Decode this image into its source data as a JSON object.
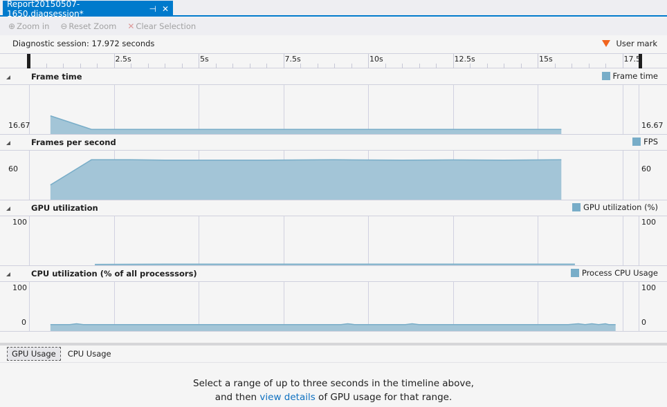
{
  "tab": {
    "title": "Report20150507-1650.diagsession*",
    "pin_icon": "pin-icon",
    "close_icon": "close-icon"
  },
  "toolbar": {
    "zoom_in": "Zoom in",
    "reset_zoom": "Reset Zoom",
    "clear_selection": "Clear Selection"
  },
  "session": {
    "label": "Diagnostic session: 17.972 seconds",
    "user_mark": "User mark",
    "user_mark_color": "#f1641e"
  },
  "ruler": {
    "ticks": [
      "2.5s",
      "5s",
      "7.5s",
      "10s",
      "12.5s",
      "15s",
      "17.5"
    ],
    "tick_values": [
      2.5,
      5,
      7.5,
      10,
      12.5,
      15,
      17.5
    ],
    "duration": 17.972
  },
  "series_color": "#78adc8",
  "chart_data": [
    {
      "type": "area",
      "title": "Frame time",
      "legend": "Frame time",
      "ytick_left": "16.67",
      "ytick_right": "16.67",
      "ylim": [
        16,
        23
      ],
      "x": [
        0.63,
        1.84,
        15.7
      ],
      "values": [
        18.6,
        16.67,
        16.67
      ]
    },
    {
      "type": "area",
      "title": "Frames per second",
      "legend": "FPS",
      "ytick_left": "60",
      "ytick_right": "60",
      "ylim": [
        0,
        70
      ],
      "x": [
        0.63,
        1.84,
        3,
        4,
        5,
        7,
        9,
        11,
        12.5,
        14,
        15.7
      ],
      "values": [
        21,
        57,
        57,
        56.5,
        56.5,
        56.5,
        57,
        56.5,
        56.8,
        56.5,
        57
      ]
    },
    {
      "type": "area",
      "title": "GPU utilization",
      "legend": "GPU utilization (%)",
      "ytick_left": "100",
      "ytick_right": "100",
      "ylim": [
        0,
        100
      ],
      "x": [
        1.94,
        4,
        16.1
      ],
      "values": [
        2,
        2.5,
        2.5
      ]
    },
    {
      "type": "area",
      "title": "CPU utilization (% of all processsors)",
      "legend": "Process CPU Usage",
      "ytick_left": "100",
      "ytick_left_2": "0",
      "ytick_right": "100",
      "ytick_right_2": "0",
      "ylim": [
        -15,
        100
      ],
      "x": [
        0.63,
        1.2,
        1.4,
        1.6,
        9.2,
        9.4,
        9.6,
        11.1,
        11.3,
        11.5,
        15.9,
        16.2,
        16.4,
        16.6,
        16.8,
        17.0,
        17.1,
        17.3
      ],
      "values": [
        0,
        0,
        2,
        0,
        0,
        2,
        0,
        0,
        2,
        0,
        0,
        2,
        0,
        2,
        0,
        2,
        0,
        0
      ]
    }
  ],
  "bottom": {
    "tabs": [
      "GPU Usage",
      "CPU Usage"
    ],
    "message_1": "Select a range of up to three seconds in the timeline above,",
    "message_2a": "and then ",
    "link": "view details",
    "message_2b": " of GPU usage for that range."
  }
}
